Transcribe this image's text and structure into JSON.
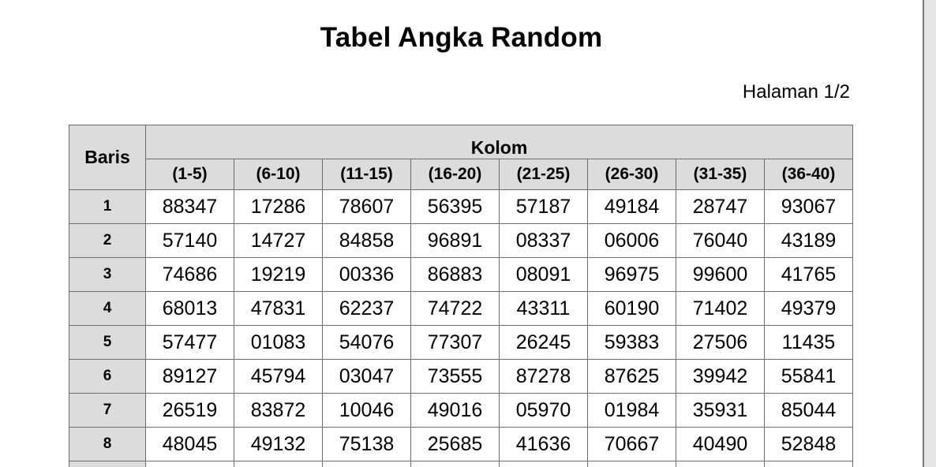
{
  "title": "Tabel Angka Random",
  "page_label": "Halaman 1/2",
  "table": {
    "row_header": "Baris",
    "col_group_header": "Kolom",
    "column_ranges": [
      "(1-5)",
      "(6-10)",
      "(11-15)",
      "(16-20)",
      "(21-25)",
      "(26-30)",
      "(31-35)",
      "(36-40)"
    ],
    "rows": [
      {
        "num": "1",
        "values": [
          "88347",
          "17286",
          "78607",
          "56395",
          "57187",
          "49184",
          "28747",
          "93067"
        ]
      },
      {
        "num": "2",
        "values": [
          "57140",
          "14727",
          "84858",
          "96891",
          "08337",
          "06006",
          "76040",
          "43189"
        ]
      },
      {
        "num": "3",
        "values": [
          "74686",
          "19219",
          "00336",
          "86883",
          "08091",
          "96975",
          "99600",
          "41765"
        ]
      },
      {
        "num": "4",
        "values": [
          "68013",
          "47831",
          "62237",
          "74722",
          "43311",
          "60190",
          "71402",
          "49379"
        ]
      },
      {
        "num": "5",
        "values": [
          "57477",
          "01083",
          "54076",
          "77307",
          "26245",
          "59383",
          "27506",
          "11435"
        ]
      },
      {
        "num": "6",
        "values": [
          "89127",
          "45794",
          "03047",
          "73555",
          "87278",
          "87625",
          "39942",
          "55841"
        ]
      },
      {
        "num": "7",
        "values": [
          "26519",
          "83872",
          "10046",
          "49016",
          "05970",
          "01984",
          "35931",
          "85044"
        ]
      },
      {
        "num": "8",
        "values": [
          "48045",
          "49132",
          "75138",
          "25685",
          "41636",
          "70667",
          "40490",
          "52848"
        ]
      }
    ]
  }
}
